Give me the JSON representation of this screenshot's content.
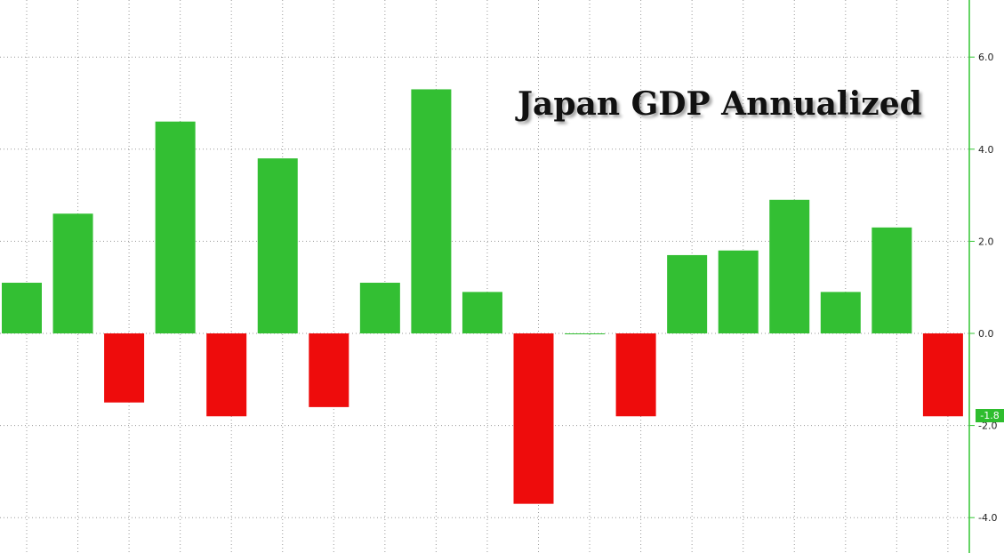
{
  "chart_data": {
    "type": "bar",
    "title": "Japan GDP Annualized",
    "xlabel": "",
    "ylabel": "",
    "values": [
      1.1,
      2.6,
      -1.5,
      4.6,
      -1.8,
      3.8,
      -1.6,
      1.1,
      5.3,
      0.9,
      -3.7,
      0.0,
      -1.8,
      1.7,
      1.8,
      2.9,
      0.9,
      2.3,
      -1.8
    ],
    "ylim": [
      -4.7,
      7.3
    ],
    "y_ticks": [
      6.0,
      4.0,
      2.0,
      0.0,
      -2.0,
      -4.0
    ],
    "y_tick_labels": [
      "6.0",
      "4.0",
      "2.0",
      "0.0",
      "-2.0",
      "-4.0"
    ],
    "last_value_label": "-1.8",
    "y_axis_position": "right",
    "grid": true,
    "colors": {
      "positive": "#33bf33",
      "negative": "#ee0c0c",
      "axis": "#33c633",
      "badge": "#2ebd2e"
    }
  }
}
